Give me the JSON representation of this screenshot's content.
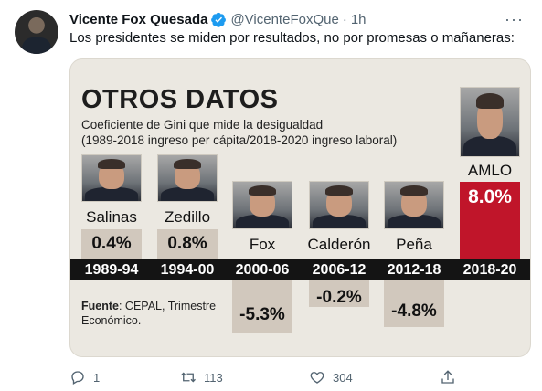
{
  "tweet": {
    "author_name": "Vicente Fox Quesada",
    "handle": "@VicenteFoxQue",
    "separator": "·",
    "time": "1h",
    "text": "Los presidentes se miden por resultados, no por promesas o mañaneras:",
    "more_label": "···"
  },
  "media": {
    "title": "OTROS DATOS",
    "subtitle_line1": "Coeficiente de Gini que mide la desigualdad",
    "subtitle_line2": "(1989-2018 ingreso per cápita/2018-2020 ingreso laboral)",
    "source_bold": "Fuente",
    "source_rest": ": CEPAL, Trimestre",
    "source_line2": "Económico.",
    "presidents": [
      {
        "name": "Salinas",
        "period": "1989-94",
        "value_label": "0.4%",
        "value": 0.4
      },
      {
        "name": "Zedillo",
        "period": "1994-00",
        "value_label": "0.8%",
        "value": 0.8
      },
      {
        "name": "Fox",
        "period": "2000-06",
        "value_label": "-5.3%",
        "value": -5.3
      },
      {
        "name": "Calderón",
        "period": "2006-12",
        "value_label": "-0.2%",
        "value": -0.2
      },
      {
        "name": "Peña",
        "period": "2012-18",
        "value_label": "-4.8%",
        "value": -4.8
      },
      {
        "name": "AMLO",
        "period": "2018-20",
        "value_label": "8.0%",
        "value": 8.0
      }
    ],
    "colors": {
      "amlo_accent": "#c0152a",
      "value_box": "#d1c8bd",
      "year_bar": "#141414"
    }
  },
  "actions": {
    "replies": "1",
    "retweets": "113",
    "likes": "304"
  }
}
